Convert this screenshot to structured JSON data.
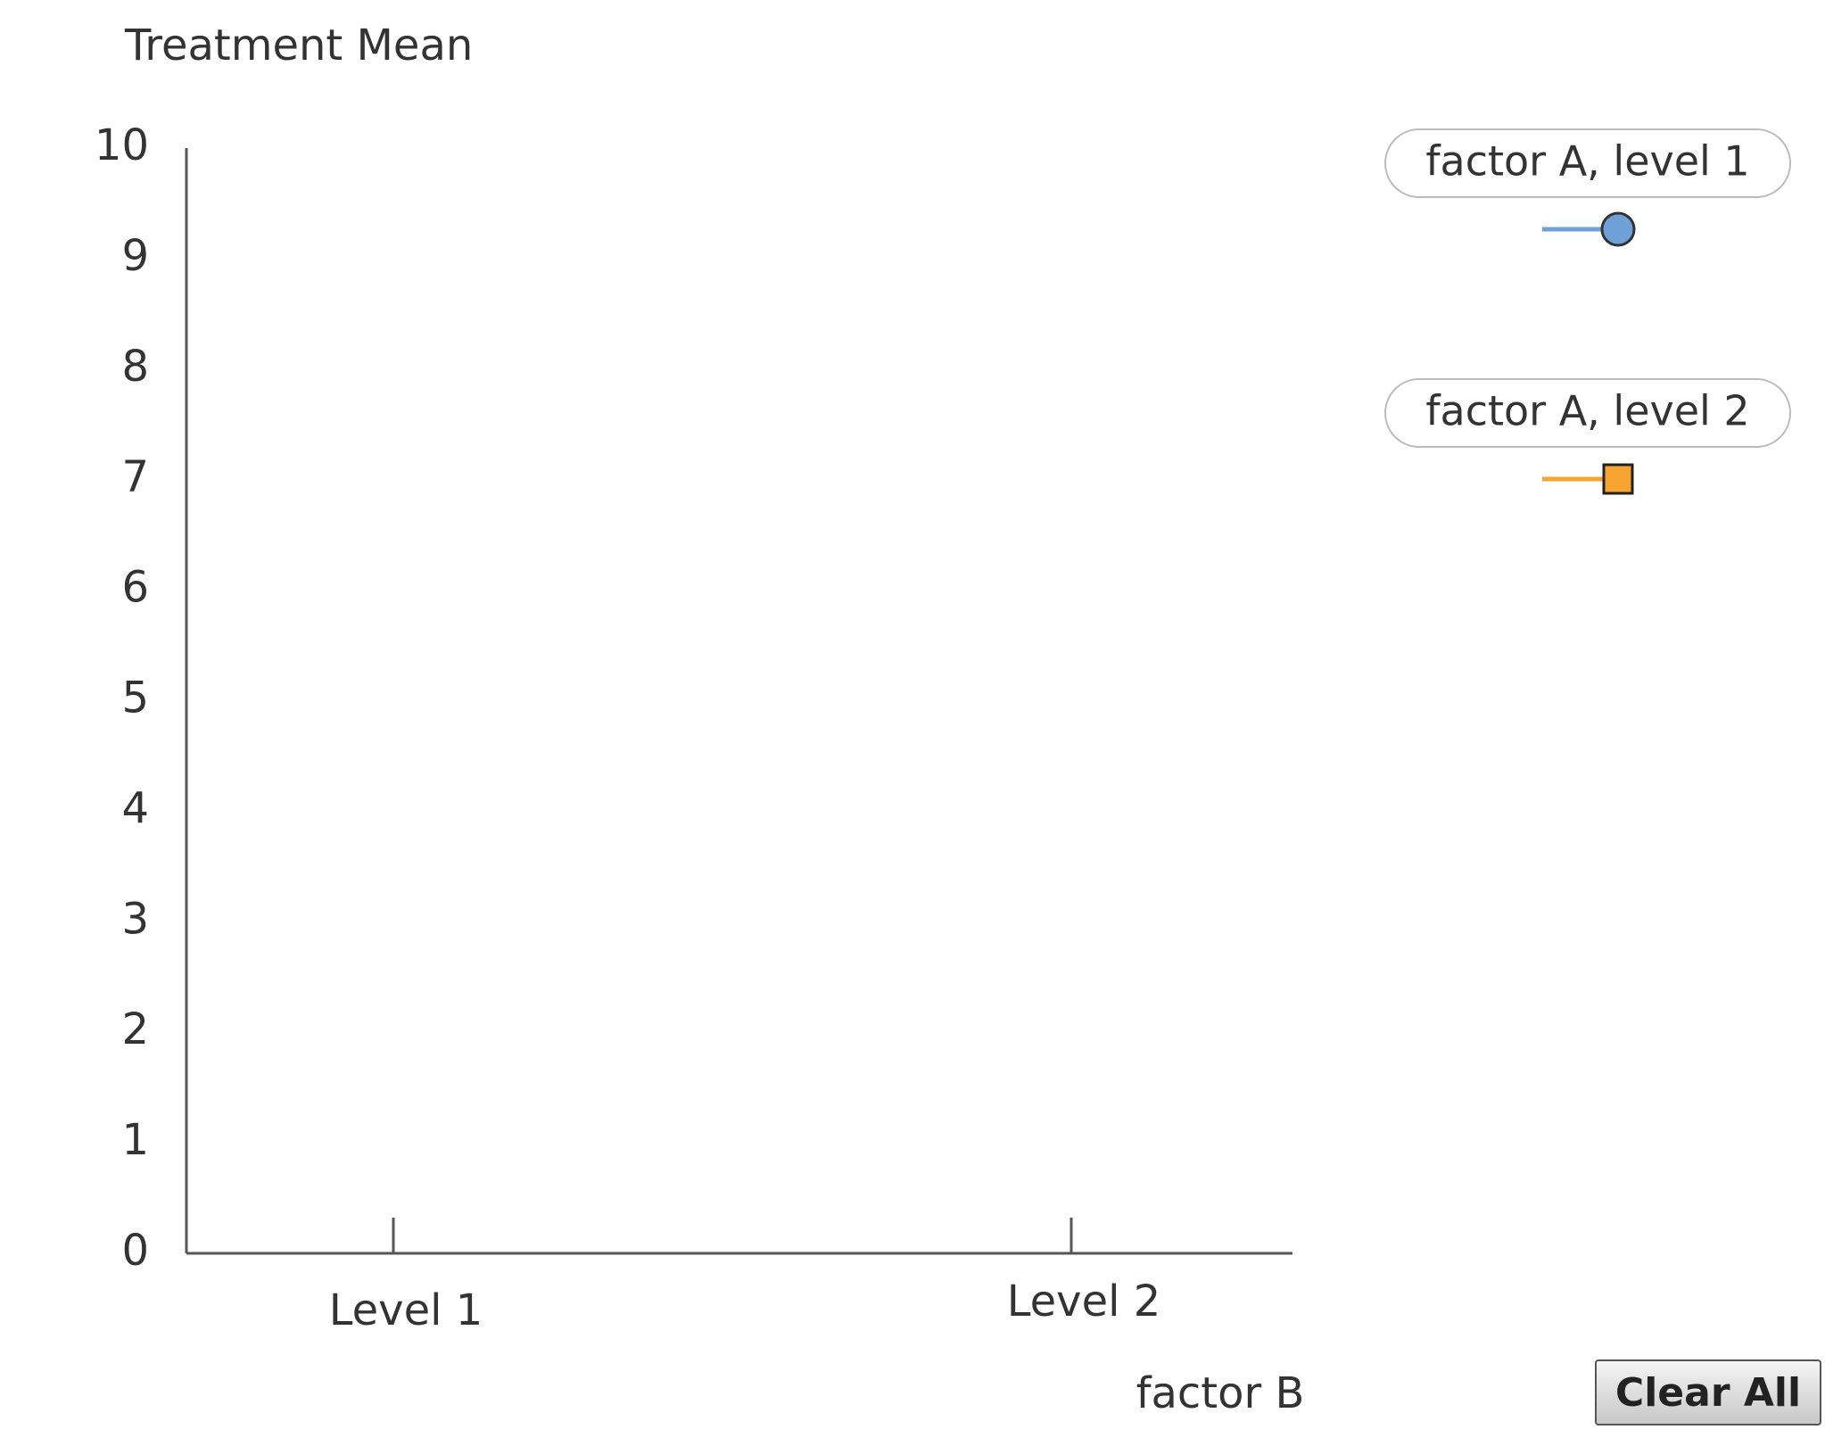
{
  "chart_data": {
    "type": "line",
    "y_label": "Treatment Mean",
    "x_label": "factor B",
    "categories": [
      "Level 1",
      "Level 2"
    ],
    "ylim": [
      0,
      10
    ],
    "yticks": [
      0,
      1,
      2,
      3,
      4,
      5,
      6,
      7,
      8,
      9,
      10
    ],
    "series": [
      {
        "name": "factor A, level 1",
        "color": "#6fa0d8",
        "marker": "circle",
        "values": [
          null,
          null
        ]
      },
      {
        "name": "factor A, level 2",
        "color": "#f7a431",
        "marker": "square",
        "values": [
          null,
          null
        ]
      }
    ]
  },
  "button": {
    "label": "Clear All"
  }
}
